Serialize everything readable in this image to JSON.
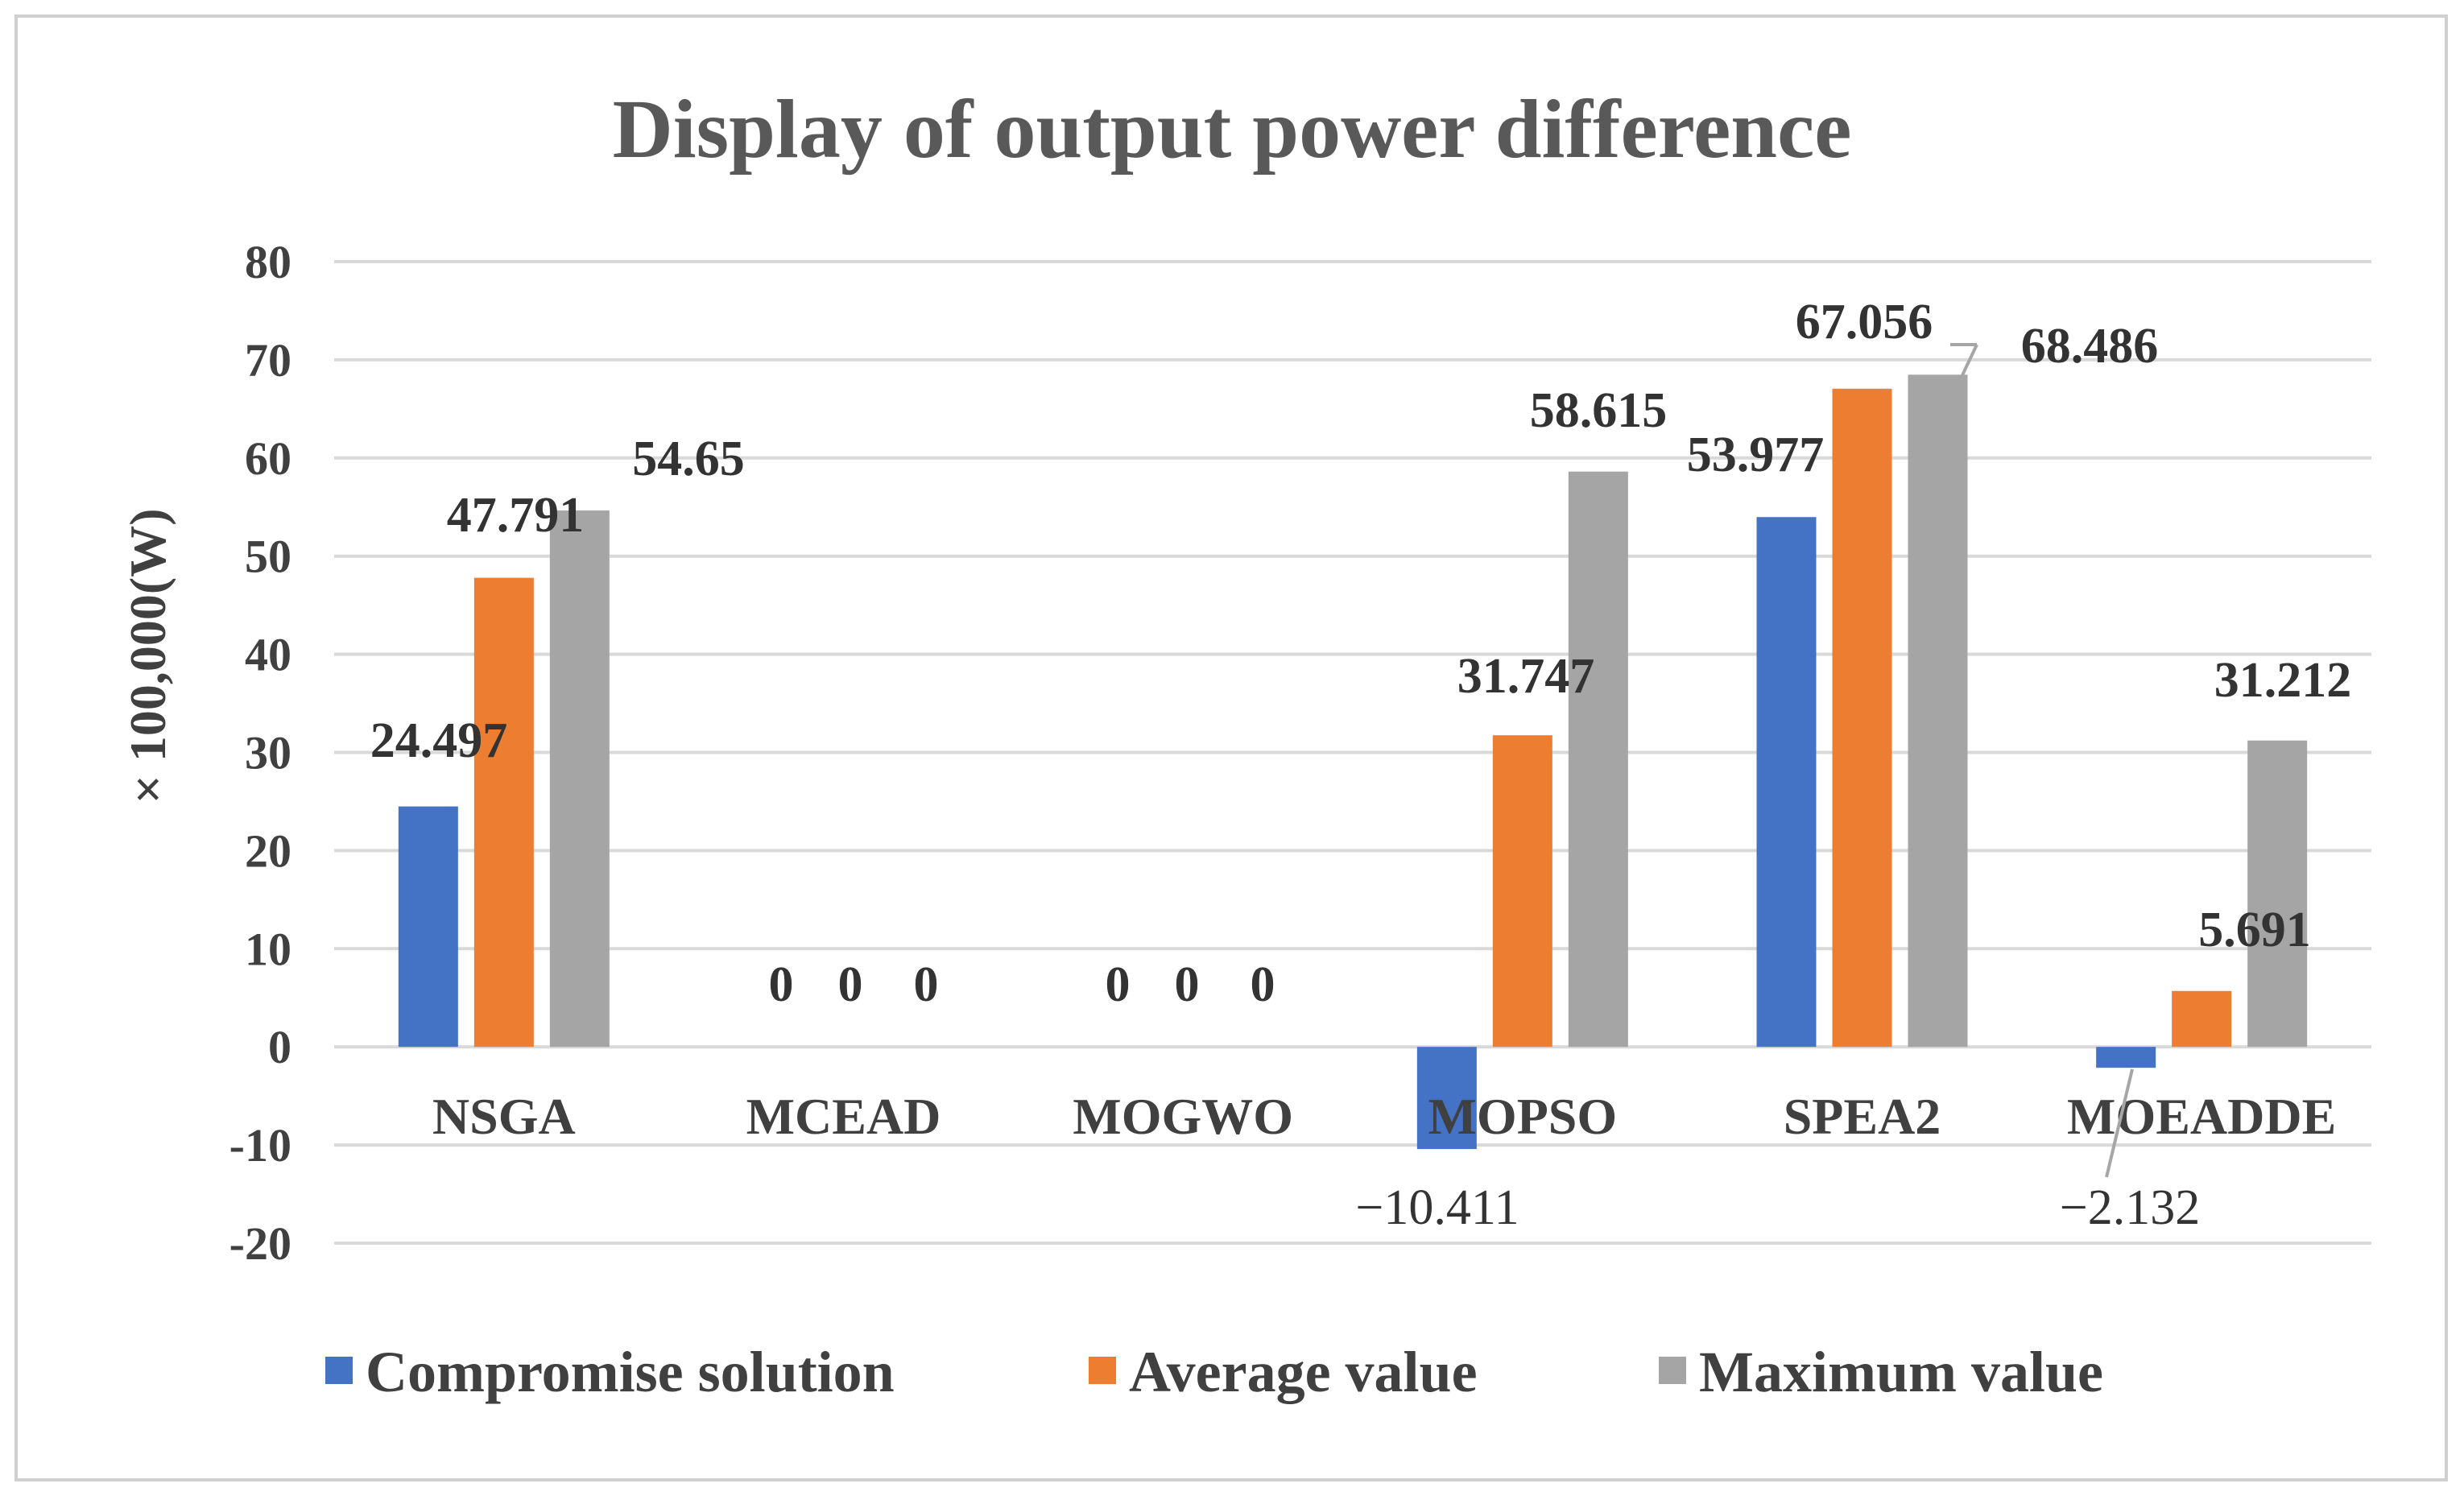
{
  "chart_data": {
    "type": "bar",
    "title": "Display of output power difference",
    "ylabel": "× 100,000(W)",
    "xlabel": "",
    "ylim": [
      -20,
      80
    ],
    "yticks": [
      80,
      70,
      60,
      50,
      40,
      30,
      20,
      10,
      0,
      -10,
      -20
    ],
    "categories": [
      "NSGA",
      "MCEAD",
      "MOGWO",
      "MOPSO",
      "SPEA2",
      "MOEADDE"
    ],
    "series": [
      {
        "name": "Compromise solution",
        "color": "#4472c4",
        "values": [
          24.497,
          0,
          0,
          -10.411,
          53.977,
          -2.132
        ],
        "labels": [
          "24.497",
          "0",
          "0",
          "−10.411",
          "53.977",
          "−2.132"
        ]
      },
      {
        "name": "Average value",
        "color": "#ed7d31",
        "values": [
          47.791,
          0,
          0,
          31.747,
          67.056,
          5.691
        ],
        "labels": [
          "47.791",
          "0",
          "0",
          "31.747",
          "67.056",
          "5.691"
        ]
      },
      {
        "name": "Maximum value",
        "color": "#a5a5a5",
        "values": [
          54.65,
          0,
          0,
          58.615,
          68.486,
          31.212
        ],
        "labels": [
          "54.65",
          "0",
          "0",
          "58.615",
          "68.486",
          "31.212"
        ]
      }
    ],
    "grid": true,
    "legend_position": "bottom"
  }
}
